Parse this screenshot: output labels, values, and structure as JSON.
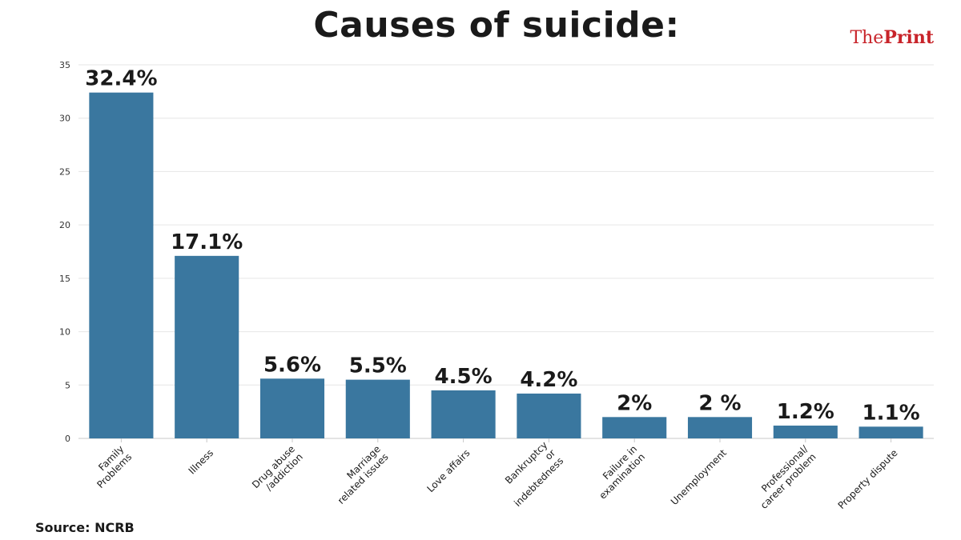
{
  "header": {
    "title": "Causes of suicide:",
    "logo_prefix": "The",
    "logo_suffix": "Print"
  },
  "footer": {
    "source": "Source: NCRB"
  },
  "colors": {
    "bar": "#3a779f",
    "grid": "#e6e6e6",
    "axis": "#c8c8c8",
    "logo": "#c8242a"
  },
  "chart_data": {
    "type": "bar",
    "title": "Causes of suicide:",
    "xlabel": "",
    "ylabel": "",
    "ylim": [
      0,
      35
    ],
    "yticks": [
      0,
      5,
      10,
      15,
      20,
      25,
      30,
      35
    ],
    "grid": true,
    "categories": [
      [
        "Family",
        "Problems"
      ],
      [
        "Illness"
      ],
      [
        "Drug abuse",
        "/addiction"
      ],
      [
        "Marriage",
        "related issues"
      ],
      [
        "Love affairs"
      ],
      [
        "Bankruptcy",
        "or",
        "indebtedness"
      ],
      [
        "Failure in",
        "examination"
      ],
      [
        "Unemployment"
      ],
      [
        "Professional/",
        "career problem"
      ],
      [
        "Property dispute"
      ]
    ],
    "values": [
      32.4,
      17.1,
      5.6,
      5.5,
      4.5,
      4.2,
      2,
      2,
      1.2,
      1.1
    ],
    "data_labels": [
      "32.4%",
      "17.1%",
      "5.6%",
      "5.5%",
      "4.5%",
      "4.2%",
      "2%",
      "2 %",
      "1.2%",
      "1.1%"
    ]
  }
}
